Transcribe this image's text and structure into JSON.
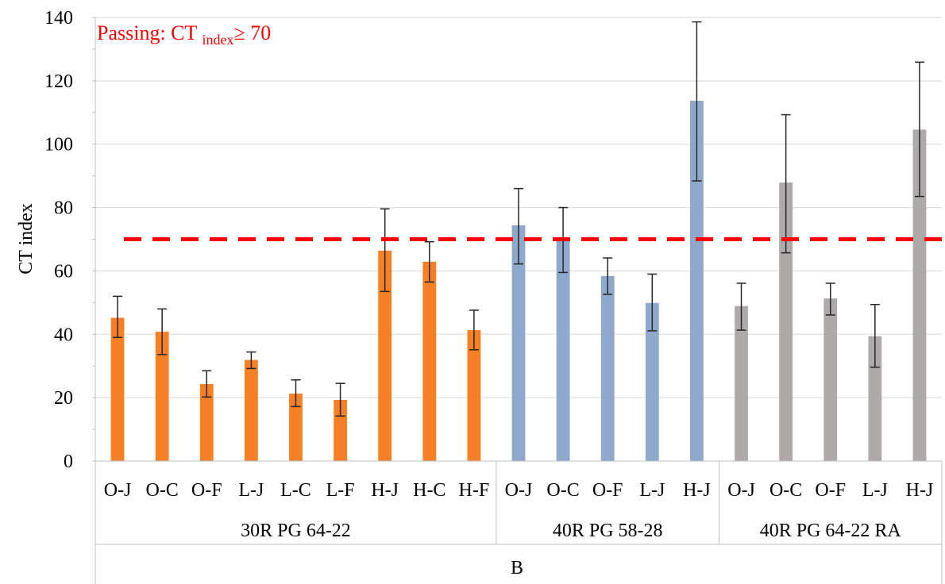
{
  "chart_data": {
    "type": "bar",
    "ylabel": "CT index",
    "xlabel": "B",
    "ylim": [
      0,
      140
    ],
    "yticks": [
      0,
      20,
      40,
      60,
      80,
      100,
      120,
      140
    ],
    "grid": "horizontal",
    "threshold": {
      "value": 70,
      "label_prefix": "Passing: CT ",
      "label_sub": "index",
      "label_suffix": "≥ 70",
      "color": "#ff0000"
    },
    "groups": [
      {
        "name": "30R PG 64-22",
        "color": "#f58025",
        "categories": [
          "O-J",
          "O-C",
          "O-F",
          "L-J",
          "L-C",
          "L-F",
          "H-J",
          "H-C",
          "H-F"
        ],
        "values": [
          45.2,
          40.8,
          24.3,
          31.9,
          21.3,
          19.3,
          66.4,
          62.9,
          41.3
        ],
        "err_low": [
          39.0,
          33.6,
          20.2,
          29.2,
          17.2,
          14.2,
          53.5,
          56.5,
          35.1
        ],
        "err_high": [
          52.0,
          48.0,
          28.5,
          34.4,
          25.6,
          24.5,
          79.6,
          69.2,
          47.6
        ]
      },
      {
        "name": "40R PG 58-28",
        "color": "#8fa9cc",
        "categories": [
          "O-J",
          "O-C",
          "O-F",
          "L-J",
          "H-J"
        ],
        "values": [
          74.4,
          69.8,
          58.4,
          49.9,
          113.7
        ],
        "err_low": [
          62.2,
          59.5,
          52.6,
          41.1,
          88.4
        ],
        "err_high": [
          86.0,
          80.0,
          64.1,
          59.0,
          138.6
        ]
      },
      {
        "name": "40R PG 64-22 RA",
        "color": "#aeaaaa",
        "categories": [
          "O-J",
          "O-C",
          "O-F",
          "L-J",
          "H-J"
        ],
        "values": [
          48.9,
          87.9,
          51.3,
          39.4,
          104.6
        ],
        "err_low": [
          41.3,
          65.7,
          46.1,
          29.6,
          83.5
        ],
        "err_high": [
          56.1,
          109.3,
          56.1,
          49.4,
          125.9
        ]
      }
    ]
  }
}
